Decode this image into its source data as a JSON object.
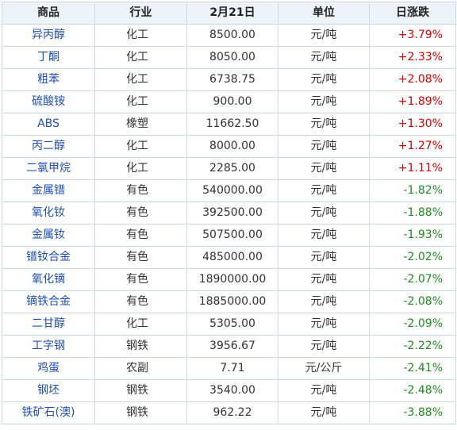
{
  "table": {
    "headers": {
      "name": "商品",
      "industry": "行业",
      "date": "2月21日",
      "unit": "单位",
      "change": "日涨跌"
    },
    "colors": {
      "up": "#d40000",
      "down": "#1e8a1e",
      "name_link": "#1f4fb0",
      "header_bg": "#eef3fa",
      "border": "#cfd8e3"
    },
    "rows": [
      {
        "name": "异丙醇",
        "industry": "化工",
        "price": "8500.00",
        "unit": "元/吨",
        "change": "+3.79%",
        "direction": "up"
      },
      {
        "name": "丁酮",
        "industry": "化工",
        "price": "8050.00",
        "unit": "元/吨",
        "change": "+2.33%",
        "direction": "up"
      },
      {
        "name": "粗苯",
        "industry": "化工",
        "price": "6738.75",
        "unit": "元/吨",
        "change": "+2.08%",
        "direction": "up"
      },
      {
        "name": "硫酸铵",
        "industry": "化工",
        "price": "900.00",
        "unit": "元/吨",
        "change": "+1.89%",
        "direction": "up"
      },
      {
        "name": "ABS",
        "industry": "橡塑",
        "price": "11662.50",
        "unit": "元/吨",
        "change": "+1.30%",
        "direction": "up"
      },
      {
        "name": "丙二醇",
        "industry": "化工",
        "price": "8000.00",
        "unit": "元/吨",
        "change": "+1.27%",
        "direction": "up"
      },
      {
        "name": "二氯甲烷",
        "industry": "化工",
        "price": "2285.00",
        "unit": "元/吨",
        "change": "+1.11%",
        "direction": "up"
      },
      {
        "name": "金属镨",
        "industry": "有色",
        "price": "540000.00",
        "unit": "元/吨",
        "change": "-1.82%",
        "direction": "down"
      },
      {
        "name": "氧化钕",
        "industry": "有色",
        "price": "392500.00",
        "unit": "元/吨",
        "change": "-1.88%",
        "direction": "down"
      },
      {
        "name": "金属钕",
        "industry": "有色",
        "price": "507500.00",
        "unit": "元/吨",
        "change": "-1.93%",
        "direction": "down"
      },
      {
        "name": "镨钕合金",
        "industry": "有色",
        "price": "485000.00",
        "unit": "元/吨",
        "change": "-2.02%",
        "direction": "down"
      },
      {
        "name": "氧化镝",
        "industry": "有色",
        "price": "1890000.00",
        "unit": "元/吨",
        "change": "-2.07%",
        "direction": "down"
      },
      {
        "name": "镝铁合金",
        "industry": "有色",
        "price": "1885000.00",
        "unit": "元/吨",
        "change": "-2.08%",
        "direction": "down"
      },
      {
        "name": "二甘醇",
        "industry": "化工",
        "price": "5305.00",
        "unit": "元/吨",
        "change": "-2.09%",
        "direction": "down"
      },
      {
        "name": "工字钢",
        "industry": "钢铁",
        "price": "3956.67",
        "unit": "元/吨",
        "change": "-2.22%",
        "direction": "down"
      },
      {
        "name": "鸡蛋",
        "industry": "农副",
        "price": "7.71",
        "unit": "元/公斤",
        "change": "-2.41%",
        "direction": "down"
      },
      {
        "name": "钢坯",
        "industry": "钢铁",
        "price": "3540.00",
        "unit": "元/吨",
        "change": "-2.48%",
        "direction": "down"
      },
      {
        "name": "铁矿石(澳)",
        "industry": "钢铁",
        "price": "962.22",
        "unit": "元/吨",
        "change": "-3.88%",
        "direction": "down"
      }
    ]
  }
}
